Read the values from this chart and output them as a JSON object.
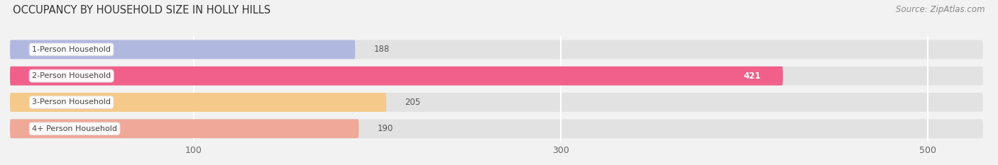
{
  "title": "OCCUPANCY BY HOUSEHOLD SIZE IN HOLLY HILLS",
  "source": "Source: ZipAtlas.com",
  "categories": [
    "1-Person Household",
    "2-Person Household",
    "3-Person Household",
    "4+ Person Household"
  ],
  "values": [
    188,
    421,
    205,
    190
  ],
  "bar_colors": [
    "#b0b8e0",
    "#f0608a",
    "#f5c98a",
    "#f0a898"
  ],
  "xlim_max": 530,
  "xticks": [
    100,
    300,
    500
  ],
  "background_color": "#f2f2f2",
  "bar_background_color": "#e2e2e2",
  "title_fontsize": 10.5,
  "source_fontsize": 8.5,
  "bar_height": 0.72,
  "figsize": [
    14.06,
    2.33
  ]
}
